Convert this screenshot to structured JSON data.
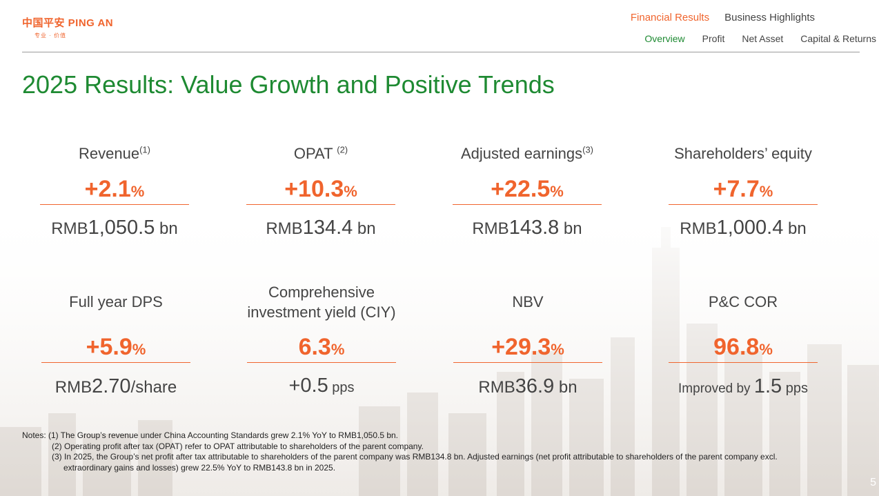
{
  "logo": {
    "main": "中国平安 PING AN",
    "sub": "专业 · 价值"
  },
  "nav": {
    "top": [
      "Financial Results",
      "Business Highlights"
    ],
    "sub": [
      "Overview",
      "Profit",
      "Net Asset",
      "Capital & Returns"
    ]
  },
  "title": "2025 Results: Value Growth and Positive Trends",
  "metrics": [
    {
      "label": "Revenue",
      "note": "(1)",
      "pct": "+2.1",
      "pct_unit": "%",
      "val_prefix": "RMB",
      "val_num": "1,050.5",
      "val_unit": " bn"
    },
    {
      "label": "OPAT ",
      "note": "(2)",
      "pct": "+10.3",
      "pct_unit": "%",
      "val_prefix": "RMB",
      "val_num": "134.4",
      "val_unit": " bn"
    },
    {
      "label": "Adjusted earnings",
      "note": "(3)",
      "pct": "+22.5",
      "pct_unit": "%",
      "val_prefix": "RMB",
      "val_num": "143.8",
      "val_unit": " bn"
    },
    {
      "label": "Shareholders’ equity",
      "note": "",
      "pct": "+7.7",
      "pct_unit": "%",
      "val_prefix": "RMB",
      "val_num": "1,000.4",
      "val_unit": " bn"
    },
    {
      "label": "Full year DPS",
      "note": "",
      "pct": "+5.9",
      "pct_unit": "%",
      "val_prefix": "RMB",
      "val_num": "2.70",
      "val_unit": "/share"
    },
    {
      "label_line1": "Comprehensive",
      "label_line2": "investment yield (CIY)",
      "pct": "6.3",
      "pct_unit": "%",
      "val_prefix": "",
      "val_num": "+0.5",
      "val_unit": " pps"
    },
    {
      "label": "NBV",
      "note": "",
      "pct": "+29.3",
      "pct_unit": "%",
      "val_prefix": "RMB",
      "val_num": "36.9",
      "val_unit": " bn"
    },
    {
      "label": "P&C COR",
      "note": "",
      "pct": "96.8",
      "pct_unit": "%",
      "val_prefix": "Improved by ",
      "val_num": "1.5",
      "val_unit": " pps"
    }
  ],
  "notes": {
    "n1": "Notes: (1) The Group’s revenue under China Accounting Standards grew 2.1% YoY to RMB1,050.5 bn.",
    "n2": "(2) Operating profit after tax (OPAT) refer to OPAT attributable to shareholders of the parent company.",
    "n3a": "(3) In 2025, the Group’s net profit after tax attributable to shareholders of the parent company was RMB134.8 bn. Adjusted earnings (net profit attributable to shareholders of the parent company excl.",
    "n3b": "extraordinary gains and losses) grew 22.5% YoY to RMB143.8 bn in 2025."
  },
  "page_number": "5",
  "colors": {
    "accent_orange": "#f0642d",
    "accent_green": "#1e8a32",
    "text": "#444444"
  }
}
